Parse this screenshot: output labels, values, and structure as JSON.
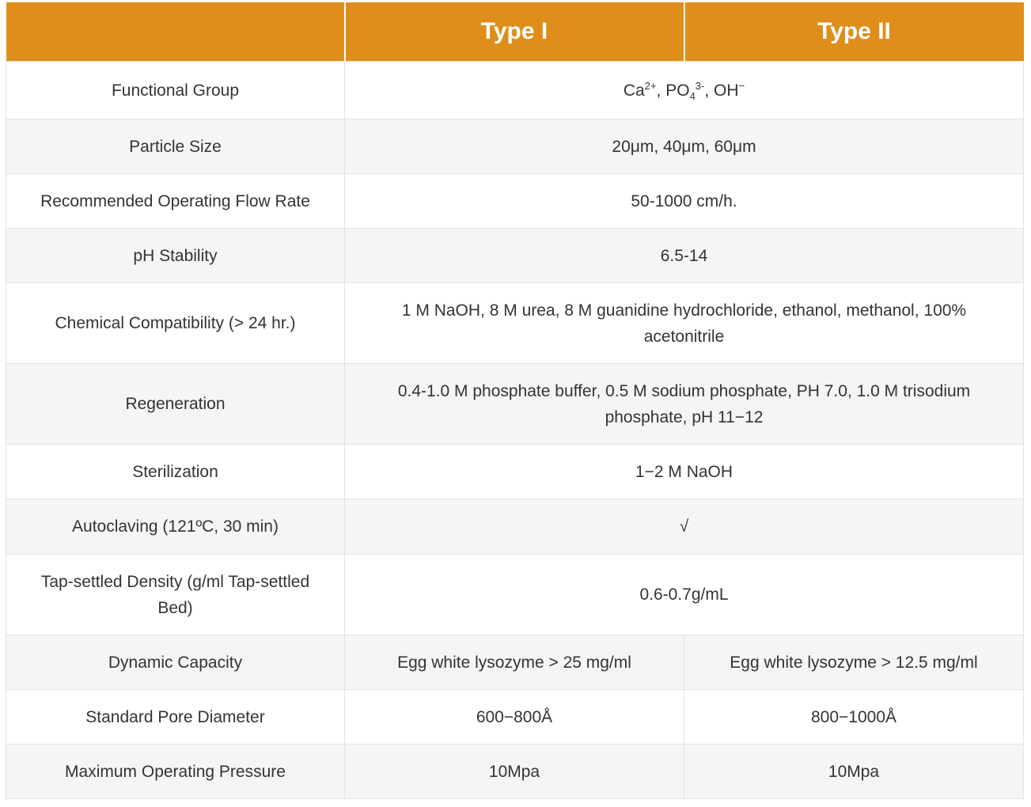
{
  "header": {
    "blank": "",
    "col1": "Type I",
    "col2": "Type II"
  },
  "functional_group": {
    "label": "Functional Group",
    "ca": "Ca",
    "ca_sup": "2+",
    "sep1": ", ",
    "po": "PO",
    "po_sub": "4",
    "po_sup": "3-",
    "sep2": ", ",
    "oh": "OH",
    "oh_sup": "−"
  },
  "rows": [
    {
      "label": "Particle Size",
      "value": "20μm, 40μm, 60μm"
    },
    {
      "label": "Recommended Operating Flow Rate",
      "value": "50-1000 cm/h."
    },
    {
      "label": "pH Stability",
      "value": "6.5-14"
    },
    {
      "label": "Chemical Compatibility (> 24 hr.)",
      "value": "1 M NaOH, 8 M urea, 8 M guanidine hydrochloride, ethanol, methanol, 100% acetonitrile"
    },
    {
      "label": "Regeneration",
      "value": "0.4-1.0 M phosphate buffer, 0.5 M sodium phosphate, PH 7.0, 1.0 M trisodium phosphate, pH 11−12"
    },
    {
      "label": "Sterilization",
      "value": "1−2 M NaOH"
    },
    {
      "label": "Autoclaving (121ºC, 30 min)",
      "value": "√"
    },
    {
      "label": "Tap-settled Density (g/ml Tap-settled Bed)",
      "value": "0.6-0.7g/mL"
    }
  ],
  "split_rows": [
    {
      "label": "Dynamic Capacity",
      "type1": "Egg white lysozyme > 25 mg/ml",
      "type2": "Egg white lysozyme > 12.5 mg/ml"
    },
    {
      "label": "Standard Pore Diameter",
      "type1": "600−800Å",
      "type2": "800−1000Å"
    },
    {
      "label": "Maximum Operating Pressure",
      "type1": "10Mpa",
      "type2": "10Mpa"
    }
  ],
  "colors": {
    "header_bg": "#DF8E1B",
    "stripe_bg": "#F5F5F5"
  }
}
